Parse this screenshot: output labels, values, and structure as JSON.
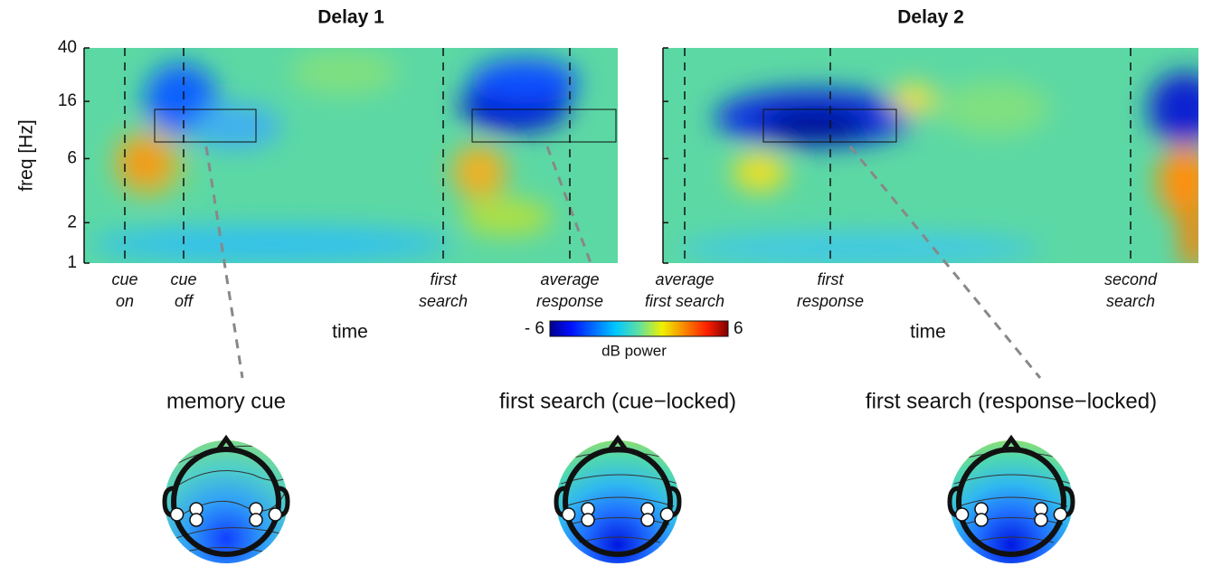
{
  "chart_data": [
    {
      "type": "heatmap",
      "title": "Delay 1",
      "x_label": "time",
      "y_label": "freq [Hz]",
      "y_scale": "log",
      "ylim": [
        1,
        40
      ],
      "yticks": [
        1,
        2,
        6,
        16,
        40
      ],
      "events": [
        [
          "cue",
          "on"
        ],
        [
          "cue",
          "off"
        ],
        [
          "first",
          "search"
        ],
        [
          "average",
          "response"
        ]
      ]
    },
    {
      "type": "heatmap",
      "title": "Delay 2",
      "x_label": "time",
      "events": [
        [
          "average",
          "first search"
        ],
        [
          "first",
          "response"
        ],
        [
          "second",
          "search"
        ]
      ]
    }
  ],
  "colorbar": {
    "label": "dB power",
    "lim": [
      -6,
      6
    ],
    "ticks": [
      {
        "value": -6,
        "label": "- 6"
      },
      6
    ]
  },
  "topoplots": [
    {
      "title": "memory cue"
    },
    {
      "title": "first search (cue−locked)"
    },
    {
      "title": "first search (response−locked)"
    }
  ]
}
